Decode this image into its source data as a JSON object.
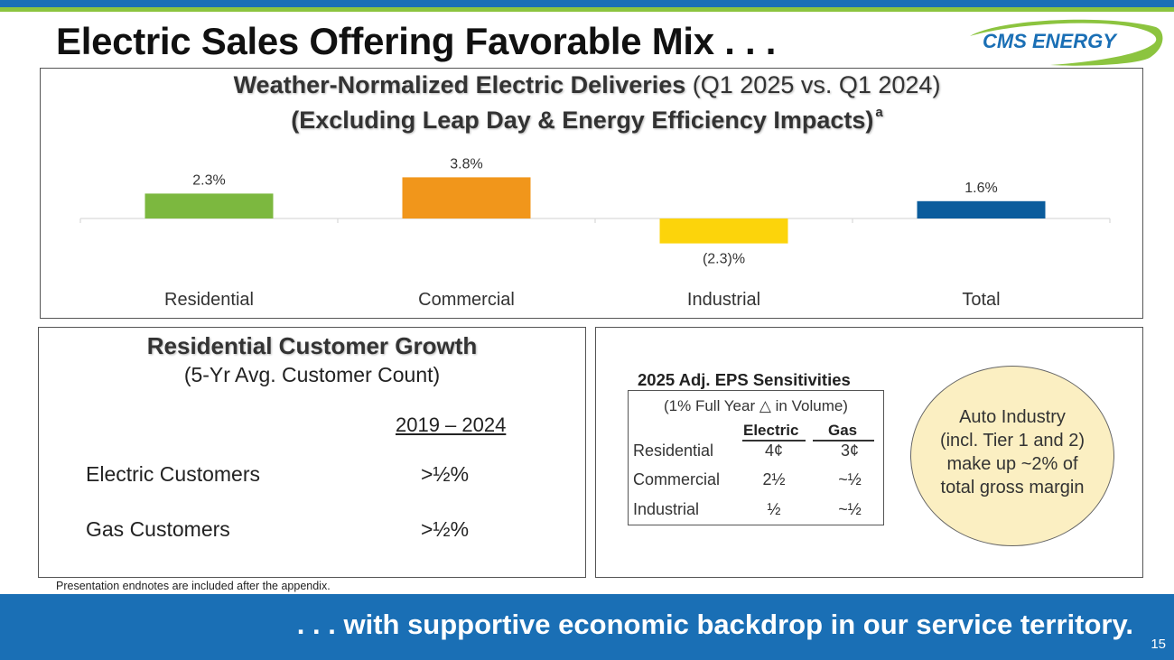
{
  "slide": {
    "title": "Electric Sales Offering Favorable Mix . . .",
    "logo_text": "CMS ENERGY",
    "endnote": "Presentation endnotes are included after the appendix.",
    "bottom_banner": ". . . with supportive economic backdrop in our service territory.",
    "page_number": "15"
  },
  "chart_data": {
    "type": "bar",
    "title_bold": "Weather-Normalized Electric Deliveries",
    "title_normal": " (Q1 2025 vs. Q1 2024)",
    "subtitle": "(Excluding Leap Day & Energy Efficiency Impacts)",
    "subtitle_footnote": "a",
    "categories": [
      "Residential",
      "Commercial",
      "Industrial",
      "Total"
    ],
    "values": [
      2.3,
      3.8,
      -2.3,
      1.6
    ],
    "data_labels": [
      "2.3%",
      "3.8%",
      "(2.3)%",
      "1.6%"
    ],
    "colors": [
      "#7cb83f",
      "#f1961b",
      "#fcd40b",
      "#0b5c9c"
    ],
    "xlabel": "",
    "ylabel": "",
    "grid": false
  },
  "growth": {
    "title": "Residential Customer Growth",
    "subtitle": "(5-Yr Avg. Customer Count)",
    "column_header": "2019 – 2024",
    "rows": [
      {
        "label": "Electric Customers",
        "value": ">½%"
      },
      {
        "label": "Gas Customers",
        "value": ">½%"
      }
    ]
  },
  "sensitivities": {
    "title": "2025 Adj. EPS Sensitivities",
    "subtitle": "(1% Full Year △ in Volume)",
    "col_electric": "Electric",
    "col_gas": "Gas",
    "rows": [
      {
        "label": "Residential",
        "electric": "4¢",
        "gas": "3¢"
      },
      {
        "label": "Commercial",
        "electric": "2½",
        "gas": "~½"
      },
      {
        "label": "Industrial",
        "electric": "½",
        "gas": "~½"
      }
    ]
  },
  "callout": {
    "lines": [
      "Auto Industry",
      "(incl. Tier 1 and 2)",
      "make up ~2% of",
      "total gross margin"
    ],
    "fill": "#fbefc2"
  },
  "colors": {
    "brand_blue": "#1a6fb5",
    "brand_green": "#8cc43f"
  }
}
